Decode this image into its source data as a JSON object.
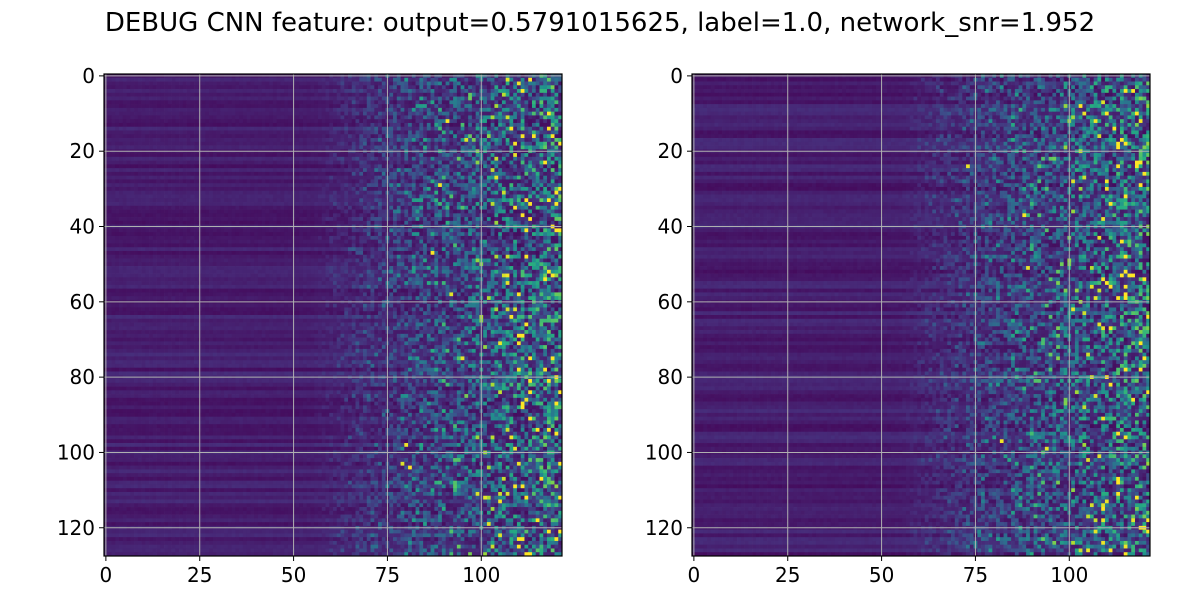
{
  "figure": {
    "title": "DEBUG CNN feature: output=0.5791015625, label=1.0, network_snr=1.952",
    "background": "#ffffff"
  },
  "chart_data": [
    {
      "type": "heatmap",
      "colormap": "viridis",
      "grid": true,
      "rows": 128,
      "cols": 122,
      "xlim": [
        -0.5,
        121.5
      ],
      "ylim": [
        127.5,
        -0.5
      ],
      "xticks": [
        0,
        25,
        50,
        75,
        100
      ],
      "xtick_labels": [
        "0",
        "25",
        "50",
        "75",
        "100"
      ],
      "yticks": [
        0,
        20,
        40,
        60,
        80,
        100,
        120
      ],
      "ytick_labels": [
        "0",
        "20",
        "40",
        "60",
        "80",
        "100",
        "120"
      ],
      "pattern": {
        "description_values": "low intensity in columns 0-60, increasing speckled intensity to the right",
        "seed": 17,
        "hotspots": [
          [
            12,
            91
          ],
          [
            17,
            96
          ],
          [
            27,
            104
          ],
          [
            29,
            89
          ],
          [
            47,
            87
          ],
          [
            58,
            92
          ],
          [
            71,
            105
          ],
          [
            75,
            95
          ],
          [
            98,
            80
          ],
          [
            103,
            79
          ],
          [
            104,
            81
          ],
          [
            111,
            99
          ],
          [
            112,
            101
          ],
          [
            113,
            105
          ],
          [
            119,
            102
          ],
          [
            123,
            110
          ]
        ]
      }
    },
    {
      "type": "heatmap",
      "colormap": "viridis",
      "grid": true,
      "rows": 128,
      "cols": 122,
      "xlim": [
        -0.5,
        121.5
      ],
      "ylim": [
        127.5,
        -0.5
      ],
      "xticks": [
        0,
        25,
        50,
        75,
        100
      ],
      "xtick_labels": [
        "0",
        "25",
        "50",
        "75",
        "100"
      ],
      "yticks": [
        0,
        20,
        40,
        60,
        80,
        100,
        120
      ],
      "ytick_labels": [
        "0",
        "20",
        "40",
        "60",
        "80",
        "100",
        "120"
      ],
      "pattern": {
        "description_values": "low intensity in columns 0-62, increasing speckled intensity to the right",
        "seed": 42,
        "hotspots": [
          [
            8,
            103
          ],
          [
            10,
            104
          ],
          [
            12,
            119
          ],
          [
            24,
            73
          ],
          [
            28,
            101
          ],
          [
            37,
            88
          ],
          [
            51,
            89
          ],
          [
            62,
            101
          ],
          [
            97,
            82
          ],
          [
            99,
            94
          ],
          [
            118,
            117
          ],
          [
            124,
            109
          ],
          [
            125,
            115
          ]
        ]
      }
    }
  ]
}
